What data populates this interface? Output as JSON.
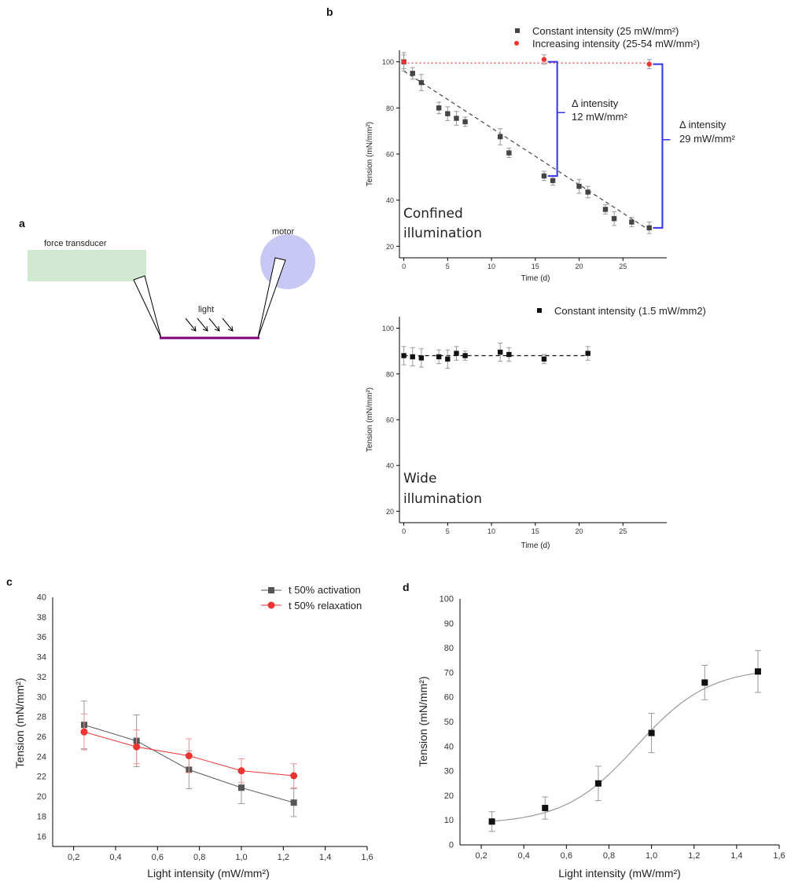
{
  "panels": {
    "a": {
      "letter": "a",
      "force_transducer": "force transducer",
      "motor": "motor",
      "light": "light",
      "colors": {
        "transducer": "#cfe8cf",
        "motor": "#c8c8f5",
        "tissue": "#800080"
      }
    },
    "b": {
      "letter": "b"
    },
    "c": {
      "letter": "c"
    },
    "d": {
      "letter": "d"
    }
  },
  "chart_data": [
    {
      "id": "b_top",
      "type": "scatter",
      "xlabel": "Time (d)",
      "ylabel": "Tension (mN/mm²)",
      "xlim": [
        -0.5,
        30
      ],
      "ylim": [
        15,
        105
      ],
      "xticks": [
        0,
        5,
        10,
        15,
        20,
        25
      ],
      "yticks": [
        20,
        40,
        60,
        80,
        100
      ],
      "xtick_labels": [
        "0",
        "5",
        "10",
        "15",
        "20",
        "25"
      ],
      "ytick_labels": [
        "20",
        "40",
        "60",
        "80",
        "100"
      ],
      "annotation": [
        "Confined",
        "illumination"
      ],
      "series": [
        {
          "name": "Constant intensity (25 mW/mm²)",
          "color": "#444444",
          "marker": "square",
          "x": [
            0,
            1,
            2,
            4,
            5,
            6,
            7,
            11,
            12,
            16,
            17,
            20,
            21,
            23,
            24,
            26,
            28
          ],
          "y": [
            100,
            95,
            91,
            80,
            77.5,
            75.5,
            74,
            67.5,
            60.5,
            50.5,
            48.5,
            46,
            43.5,
            36,
            32,
            30.5,
            28
          ],
          "err": [
            4,
            2.5,
            3.5,
            2.5,
            3,
            3,
            2,
            3.5,
            2,
            2,
            2,
            3,
            2.5,
            2,
            3,
            2,
            2.5
          ],
          "fit": {
            "style": "dashed",
            "x": [
              0,
              28
            ],
            "y": [
              96,
              27
            ]
          }
        },
        {
          "name": "Increasing intensity (25-54 mW/mm²)",
          "color": "#ee3333",
          "marker": "circle",
          "x": [
            0,
            16,
            28
          ],
          "y": [
            100,
            101,
            99
          ],
          "err": [
            3,
            2,
            2
          ],
          "fit": {
            "style": "dotted",
            "x": [
              0,
              28
            ],
            "y": [
              99.5,
              99.5
            ]
          }
        }
      ],
      "brackets": [
        {
          "x": 17.5,
          "y_top": 100,
          "y_bottom": 50.5,
          "label": [
            "Δ intensity",
            "12 mW/mm²"
          ],
          "color": "#3333ee"
        },
        {
          "x": 29.5,
          "y_top": 99,
          "y_bottom": 28,
          "label": [
            "Δ intensity",
            "29 mW/mm²"
          ],
          "color": "#3333ee"
        }
      ]
    },
    {
      "id": "b_bottom",
      "type": "scatter",
      "xlabel": "Time (d)",
      "ylabel": "Tension (mN/mm²)",
      "xlim": [
        -0.5,
        30
      ],
      "ylim": [
        15,
        105
      ],
      "xticks": [
        0,
        5,
        10,
        15,
        20,
        25
      ],
      "yticks": [
        20,
        40,
        60,
        80,
        100
      ],
      "xtick_labels": [
        "0",
        "5",
        "10",
        "15",
        "20",
        "25"
      ],
      "ytick_labels": [
        "20",
        "40",
        "60",
        "80",
        "100"
      ],
      "annotation": [
        "Wide",
        "illumination"
      ],
      "series": [
        {
          "name": "Constant intensity (1.5 mW/mm2)",
          "color": "#111111",
          "marker": "square",
          "x": [
            0,
            1,
            2,
            4,
            5,
            6,
            7,
            11,
            12,
            16,
            21
          ],
          "y": [
            88,
            87.5,
            87,
            87.5,
            86.5,
            89,
            88,
            89.5,
            88.5,
            86.5,
            89
          ],
          "err": [
            4,
            4,
            4,
            3,
            4,
            3,
            2,
            4,
            3,
            2,
            3
          ],
          "fit": {
            "style": "dashed",
            "x": [
              0,
              21
            ],
            "y": [
              88,
              88
            ]
          }
        }
      ]
    },
    {
      "id": "c",
      "type": "line",
      "xlabel": "Light intensity (mW/mm²)",
      "ylabel": "Tension (mN/mm²)",
      "xlim": [
        0.1,
        1.6
      ],
      "ylim": [
        15,
        40
      ],
      "xticks": [
        0.2,
        0.4,
        0.6,
        0.8,
        1.0,
        1.2,
        1.4,
        1.6
      ],
      "xtick_labels": [
        "0,2",
        "0,4",
        "0,6",
        "0,8",
        "1,0",
        "1,2",
        "1,4",
        "1,6"
      ],
      "yticks": [
        16,
        18,
        20,
        22,
        24,
        26,
        28,
        30,
        32,
        34,
        36,
        38,
        40
      ],
      "ytick_labels": [
        "16",
        "18",
        "20",
        "22",
        "24",
        "26",
        "28",
        "30",
        "32",
        "34",
        "36",
        "38",
        "40"
      ],
      "legend_position": "top-right",
      "series": [
        {
          "name": "t 50% activation",
          "color": "#555555",
          "marker": "square",
          "x": [
            0.25,
            0.5,
            0.75,
            1.0,
            1.25
          ],
          "y": [
            27.2,
            25.6,
            22.7,
            20.9,
            19.4
          ],
          "err": [
            2.4,
            2.6,
            1.9,
            1.6,
            1.4
          ]
        },
        {
          "name": "t 50% relaxation",
          "color": "#ee3333",
          "marker": "circle",
          "x": [
            0.25,
            0.5,
            0.75,
            1.0,
            1.25
          ],
          "y": [
            26.5,
            25.0,
            24.1,
            22.6,
            22.1
          ],
          "err": [
            1.8,
            1.7,
            1.7,
            1.2,
            1.2
          ]
        }
      ]
    },
    {
      "id": "d",
      "type": "scatter",
      "xlabel": "Light intensity (mW/mm²)",
      "ylabel": "Tension (mN/mm²)",
      "xlim": [
        0.1,
        1.6
      ],
      "ylim": [
        0,
        100
      ],
      "xticks": [
        0.2,
        0.4,
        0.6,
        0.8,
        1.0,
        1.2,
        1.4,
        1.6
      ],
      "xtick_labels": [
        "0,2",
        "0,4",
        "0,6",
        "0,8",
        "1,0",
        "1,2",
        "1,4",
        "1,6"
      ],
      "yticks": [
        0,
        10,
        20,
        30,
        40,
        50,
        60,
        70,
        80,
        90,
        100
      ],
      "ytick_labels": [
        "0",
        "10",
        "20",
        "30",
        "40",
        "50",
        "60",
        "70",
        "80",
        "90",
        "100"
      ],
      "series": [
        {
          "color": "#111111",
          "marker": "square",
          "x": [
            0.25,
            0.5,
            0.75,
            1.0,
            1.25,
            1.5
          ],
          "y": [
            9.5,
            15,
            25,
            45.5,
            66,
            70.5
          ],
          "err": [
            4,
            4.5,
            7,
            8,
            7,
            8.5
          ],
          "fit": {
            "style": "solid",
            "color": "#999999",
            "bottom": 8.5,
            "top": 72,
            "x50": 0.93,
            "slope": 0.17
          }
        }
      ]
    }
  ]
}
